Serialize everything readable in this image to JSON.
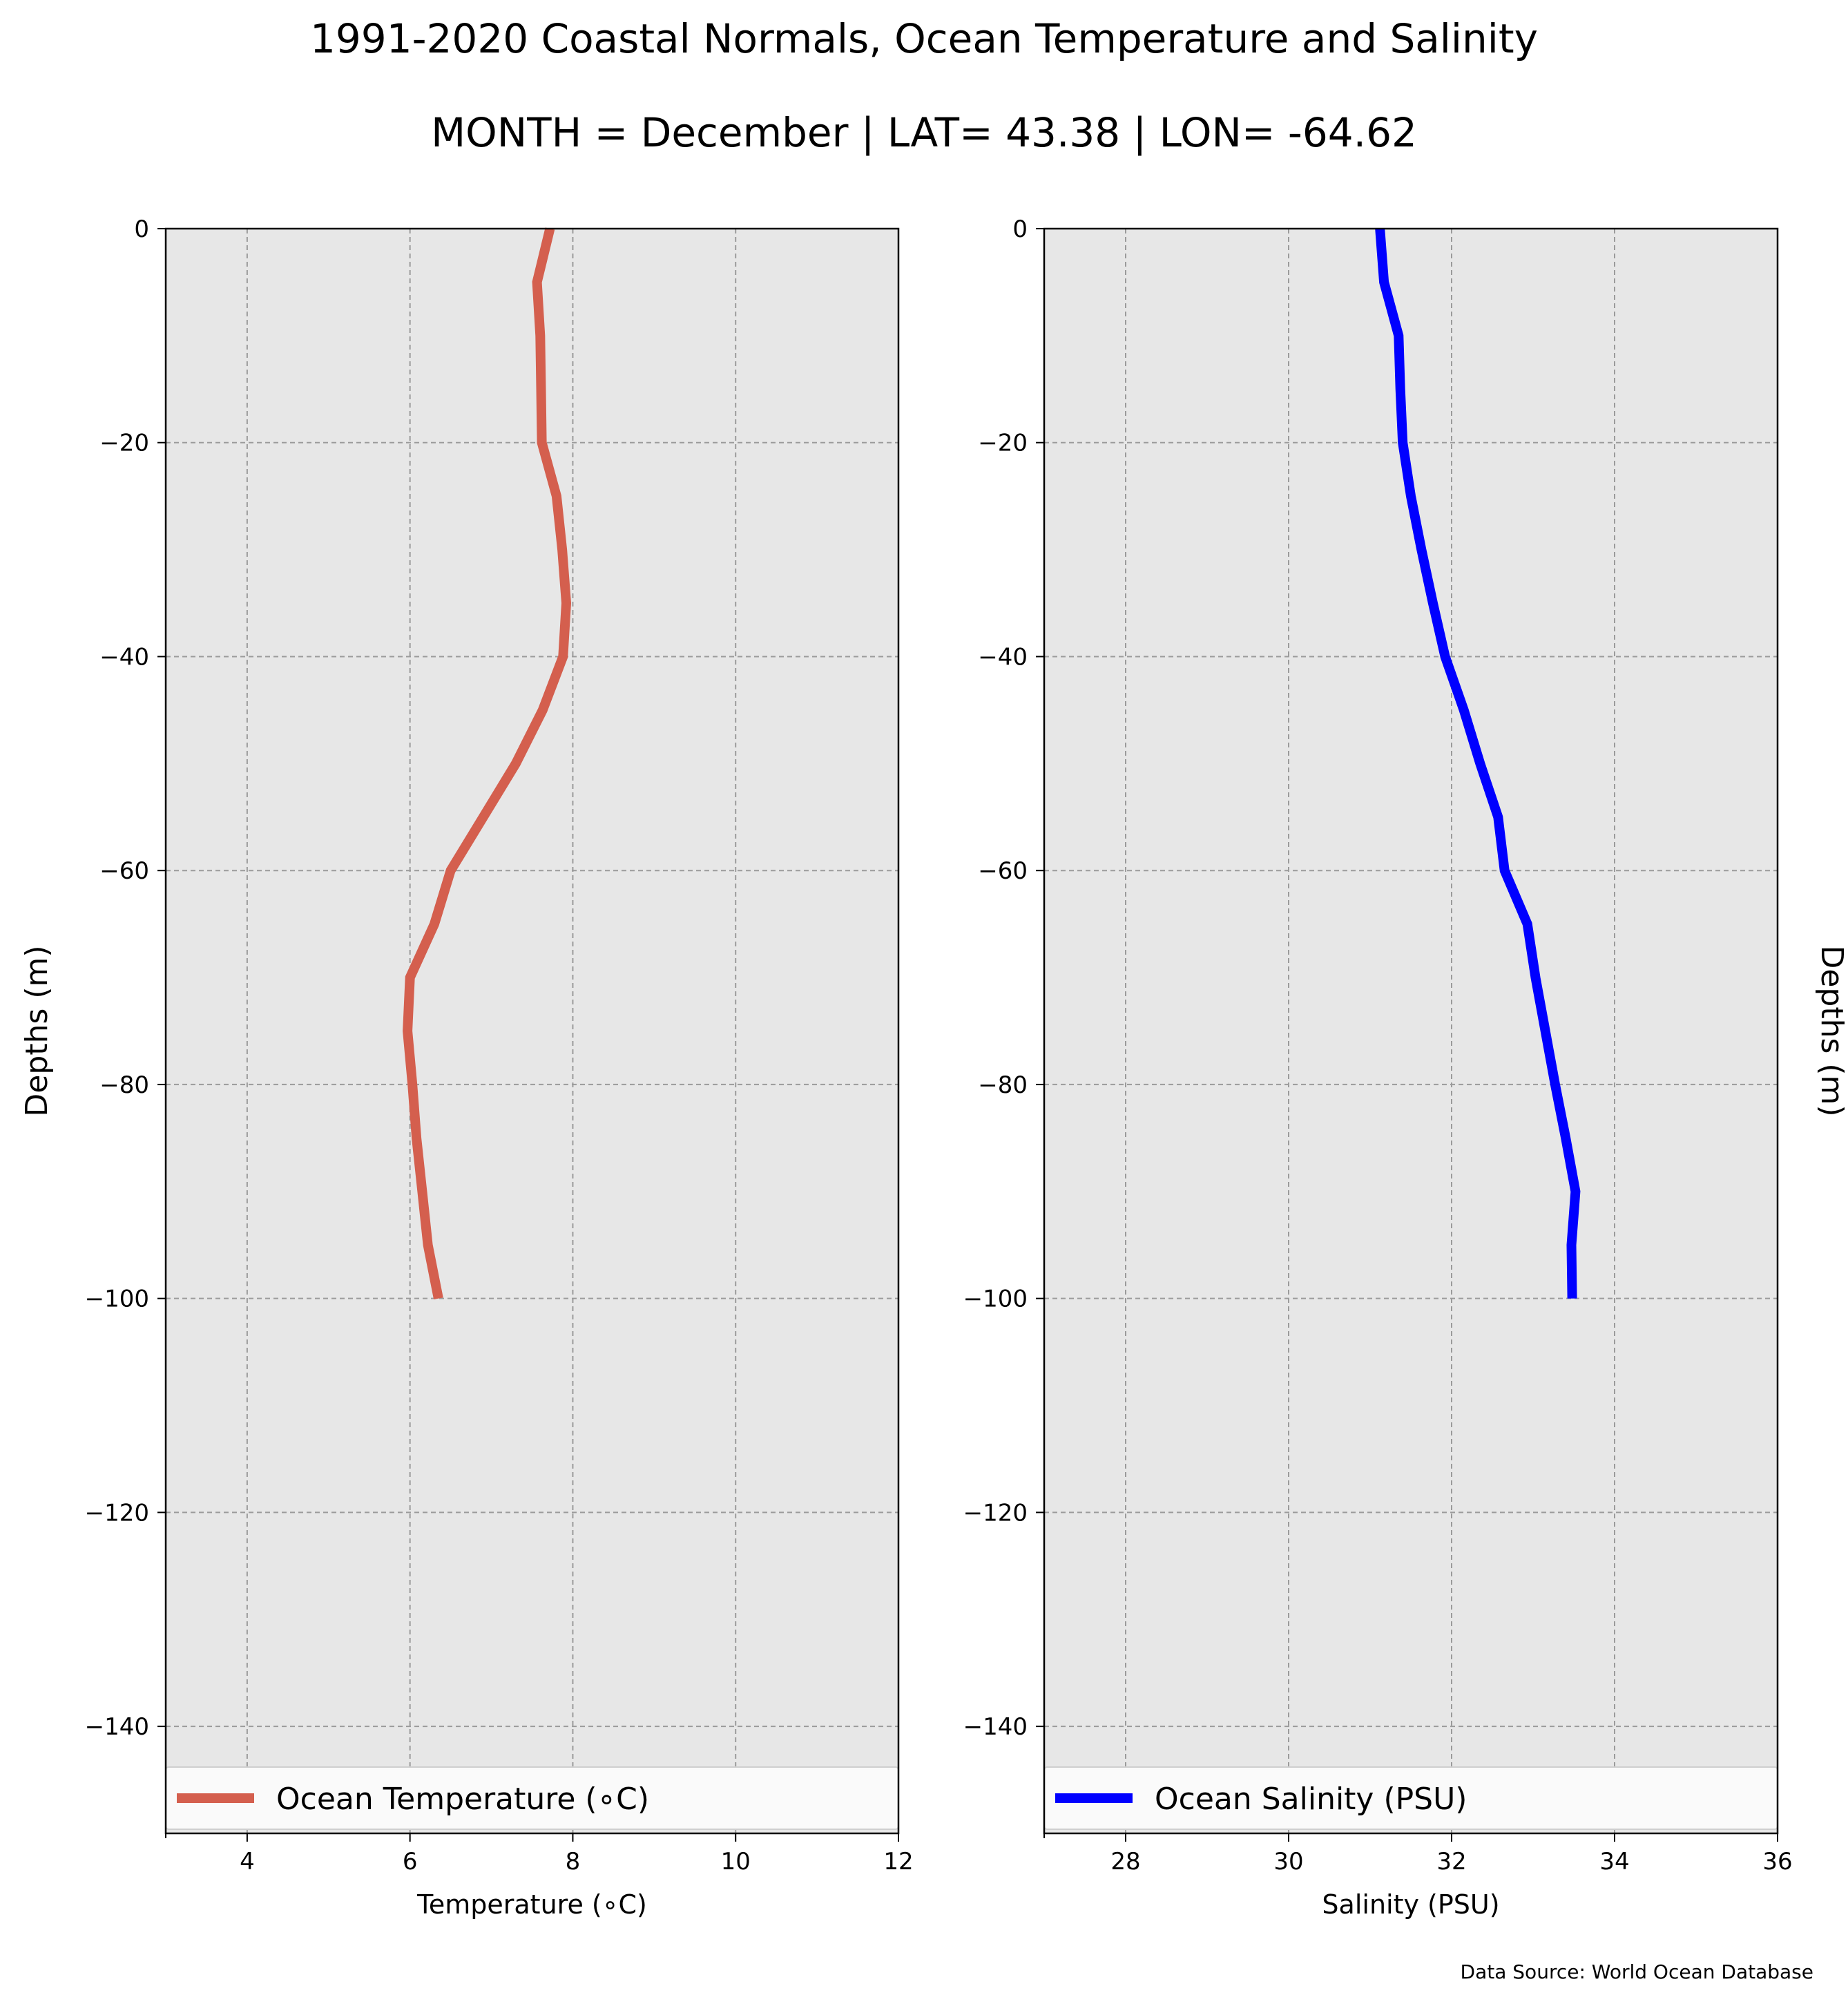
{
  "title": "1991-2020 Coastal Normals, Ocean Temperature and Salinity",
  "subtitle": "MONTH = December | LAT= 43.38 | LON= -64.62",
  "source": "Data Source: World Ocean Database",
  "chart_data": [
    {
      "type": "line",
      "xlabel": "Temperature ($^\\circ$C)",
      "xlabel_display": "Temperature (∘C)",
      "ylabel": "Depths (m)",
      "xlim": [
        3,
        12
      ],
      "ylim": [
        -150,
        0
      ],
      "xticks": [
        4,
        6,
        8,
        10,
        12
      ],
      "xtick_labels": [
        "4",
        "6",
        "8",
        "10",
        "12"
      ],
      "yticks": [
        0,
        -20,
        -40,
        -60,
        -80,
        -100,
        -120,
        -140
      ],
      "ytick_labels": [
        "0",
        "−20",
        "−40",
        "−60",
        "−80",
        "−100",
        "−120",
        "−140"
      ],
      "grid": true,
      "ylabel_side": "left",
      "legend_position": "lower-center",
      "series": [
        {
          "name": "Ocean Temperature (∘C)",
          "color": "#d45f4e",
          "x": [
            7.72,
            7.56,
            7.6,
            7.61,
            7.62,
            7.8,
            7.87,
            7.92,
            7.88,
            7.63,
            7.3,
            6.9,
            6.5,
            6.3,
            6.0,
            5.97,
            6.03,
            6.08,
            6.15,
            6.22,
            6.35
          ],
          "y": [
            0,
            -5,
            -10,
            -15,
            -20,
            -25,
            -30,
            -35,
            -40,
            -45,
            -50,
            -55,
            -60,
            -65,
            -70,
            -75,
            -80,
            -85,
            -90,
            -95,
            -100
          ]
        }
      ]
    },
    {
      "type": "line",
      "xlabel": "Salinity (PSU)",
      "ylabel": "Depths (m)",
      "xlim": [
        27,
        36
      ],
      "ylim": [
        -150,
        0
      ],
      "xticks": [
        28,
        30,
        32,
        34,
        36
      ],
      "xtick_labels": [
        "28",
        "30",
        "32",
        "34",
        "36"
      ],
      "yticks": [
        0,
        -20,
        -40,
        -60,
        -80,
        -100,
        -120,
        -140
      ],
      "ytick_labels": [
        "0",
        "−20",
        "−40",
        "−60",
        "−80",
        "−100",
        "−120",
        "−140"
      ],
      "grid": true,
      "ylabel_side": "right",
      "legend_position": "lower-center",
      "series": [
        {
          "name": "Ocean Salinity (PSU)",
          "color": "#0000ff",
          "x": [
            31.12,
            31.17,
            31.35,
            31.37,
            31.4,
            31.5,
            31.63,
            31.77,
            31.92,
            32.15,
            32.35,
            32.57,
            32.65,
            32.93,
            33.03,
            33.15,
            33.27,
            33.4,
            33.52,
            33.47,
            33.48
          ],
          "y": [
            0,
            -5,
            -10,
            -15,
            -20,
            -25,
            -30,
            -35,
            -40,
            -45,
            -50,
            -55,
            -60,
            -65,
            -70,
            -75,
            -80,
            -85,
            -90,
            -95,
            -100
          ]
        }
      ]
    }
  ]
}
